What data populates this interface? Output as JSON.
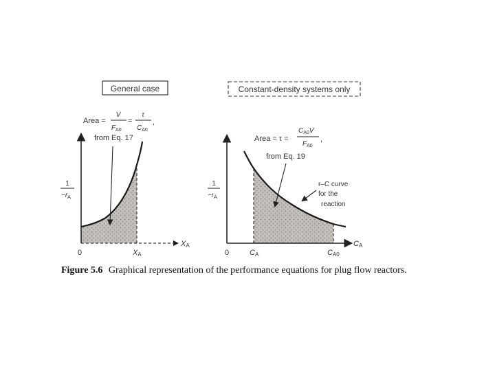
{
  "left_panel": {
    "title": "General case",
    "area_label": "Area =",
    "frac1_num": "V",
    "frac1_den_main": "F",
    "frac1_den_sub": "A0",
    "equals": "=",
    "frac2_num": "τ",
    "frac2_den_main": "C",
    "frac2_den_sub": "A0",
    "frac_comma": ",",
    "source": "from Eq. 17",
    "y_label_num": "1",
    "y_label_den_main": "−r",
    "y_label_den_sub": "A",
    "origin": "0",
    "x_mark_main": "X",
    "x_mark_sub": "A",
    "x_axis_main": "X",
    "x_axis_sub": "A"
  },
  "right_panel": {
    "title": "Constant-density systems only",
    "area_label": "Area = τ =",
    "frac_num_main": "C",
    "frac_num_sub": "A0",
    "frac_num_tail": "V",
    "frac_den_main": "F",
    "frac_den_sub": "A0",
    "frac_comma": ",",
    "source": "from Eq. 19",
    "curve_note_1": "r–C curve",
    "curve_note_2": "for the",
    "curve_note_3": "reaction",
    "y_label_num": "1",
    "y_label_den_main": "−r",
    "y_label_den_sub": "A",
    "origin": "0",
    "x_mark1_main": "C",
    "x_mark1_sub": "A",
    "x_mark2_main": "C",
    "x_mark2_sub": "A0",
    "x_axis_main": "C",
    "x_axis_sub": "A"
  },
  "caption": {
    "label": "Figure 5.6",
    "text": "Graphical representation of the performance equations for plug flow reactors."
  },
  "colors": {
    "page": "#ffffff",
    "ink": "#222222",
    "shade": "#b9b5b0"
  }
}
